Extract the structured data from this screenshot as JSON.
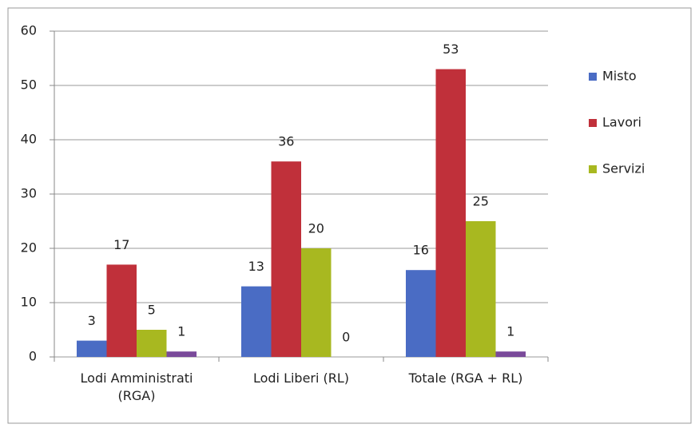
{
  "chart_data": {
    "type": "bar",
    "categories": [
      "Lodi Amministrati (RGA)",
      "Lodi Liberi (RL)",
      "Totale (RGA + RL)"
    ],
    "series": [
      {
        "name": "Misto",
        "color": "#4a6cc4",
        "values": [
          3,
          13,
          16
        ]
      },
      {
        "name": "Lavori",
        "color": "#c0303a",
        "values": [
          17,
          36,
          53
        ]
      },
      {
        "name": "Servizi",
        "color": "#a8b820",
        "values": [
          5,
          20,
          25
        ]
      },
      {
        "color": "#7a4a9a",
        "values": [
          1,
          0,
          1
        ]
      }
    ],
    "ylim": [
      0,
      60
    ],
    "yticks": [
      0,
      10,
      20,
      30,
      40,
      50,
      60
    ],
    "grid": true,
    "legend": "right"
  }
}
